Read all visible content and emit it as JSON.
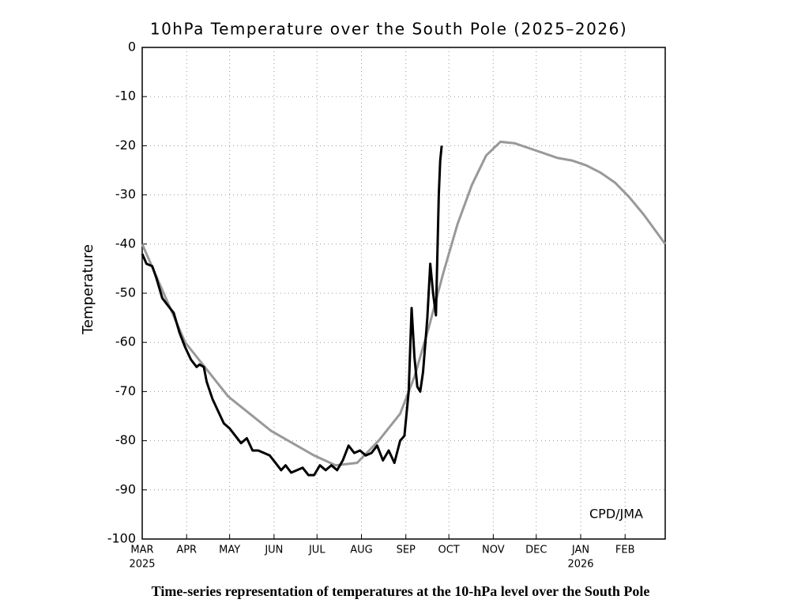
{
  "chart_data": {
    "type": "line",
    "title": "10hPa Temperature over the South Pole (2025–2026)",
    "y_label": "Temperature",
    "annotation": "CPD/JMA",
    "caption": "Time-series representation of temperatures at the 10-hPa level over the South Pole",
    "xlim": [
      0,
      365
    ],
    "xticks": [
      {
        "value": 0,
        "label": "MAR"
      },
      {
        "value": 31,
        "label": "APR"
      },
      {
        "value": 61,
        "label": "MAY"
      },
      {
        "value": 92,
        "label": "JUN"
      },
      {
        "value": 122,
        "label": "JUL"
      },
      {
        "value": 153,
        "label": "AUG"
      },
      {
        "value": 184,
        "label": "SEP"
      },
      {
        "value": 214,
        "label": "OCT"
      },
      {
        "value": 245,
        "label": "NOV"
      },
      {
        "value": 275,
        "label": "DEC"
      },
      {
        "value": 306,
        "label": "JAN"
      },
      {
        "value": 337,
        "label": "FEB"
      }
    ],
    "year_labels": [
      {
        "value": 0,
        "label": "2025"
      },
      {
        "value": 306,
        "label": "2026"
      }
    ],
    "ylim": [
      -100,
      0
    ],
    "yticks": [
      0,
      -10,
      -20,
      -30,
      -40,
      -50,
      -60,
      -70,
      -80,
      -90,
      -100
    ],
    "grid": true,
    "series": [
      {
        "color": "#999999",
        "x": [
          0,
          30,
          60,
          90,
          120,
          135,
          150,
          165,
          180,
          190,
          200,
          210,
          220,
          230,
          240,
          250,
          260,
          270,
          280,
          290,
          300,
          310,
          320,
          330,
          340,
          350,
          365
        ],
        "values": [
          -40,
          -60,
          -71,
          -78,
          -83,
          -85,
          -84.5,
          -80,
          -74.5,
          -67,
          -57,
          -46,
          -36,
          -28,
          -22,
          -19.2,
          -19.5,
          -20.5,
          -21.5,
          -22.5,
          -23,
          -24,
          -25.5,
          -27.5,
          -30.5,
          -34,
          -40
        ]
      },
      {
        "color": "#000000",
        "x": [
          0,
          3,
          7,
          10,
          14,
          18,
          22,
          26,
          30,
          34,
          38,
          40,
          43,
          45,
          49,
          53,
          57,
          61,
          65,
          69,
          73,
          77,
          81,
          85,
          89,
          93,
          97,
          100,
          104,
          108,
          112,
          116,
          120,
          124,
          128,
          132,
          136,
          140,
          144,
          148,
          152,
          156,
          160,
          164,
          168,
          172,
          176,
          180,
          183,
          186,
          188,
          190,
          192,
          194,
          196,
          199,
          201,
          203,
          205,
          207,
          208,
          209
        ],
        "values": [
          -42,
          -44,
          -44.5,
          -47,
          -51,
          -52.5,
          -54,
          -58,
          -61,
          -63.5,
          -65,
          -64.5,
          -65,
          -68,
          -71.5,
          -74,
          -76.5,
          -77.5,
          -79,
          -80.5,
          -79.5,
          -82,
          -82,
          -82.5,
          -83,
          -84.5,
          -86,
          -85,
          -86.5,
          -86,
          -85.5,
          -87,
          -87,
          -85,
          -86,
          -85,
          -86,
          -84,
          -81,
          -82.5,
          -82,
          -83,
          -82.5,
          -81,
          -84,
          -82,
          -84.5,
          -80,
          -79,
          -70,
          -53,
          -63,
          -69,
          -70,
          -66,
          -55,
          -44,
          -50,
          -54.5,
          -30,
          -23,
          -20
        ]
      }
    ]
  }
}
